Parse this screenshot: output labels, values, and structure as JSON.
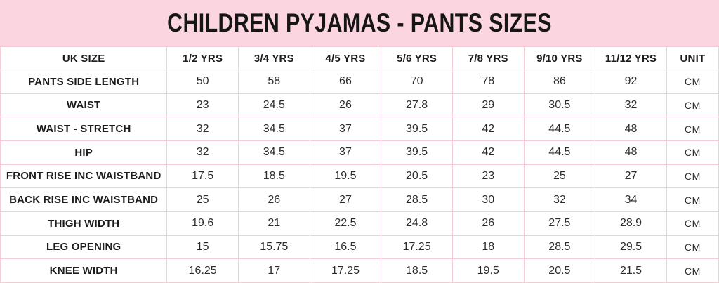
{
  "title": "CHILDREN PYJAMAS - PANTS SIZES",
  "colors": {
    "banner_bg": "#fbd5df",
    "grid_border": "#f7ccd6",
    "text": "#1c1c1c"
  },
  "table": {
    "columns": [
      "UK SIZE",
      "1/2 YRS",
      "3/4 YRS",
      "4/5 YRS",
      "5/6 YRS",
      "7/8 YRS",
      "9/10 YRS",
      "11/12 YRS",
      "UNIT"
    ],
    "rows": [
      {
        "label": "PANTS SIDE LENGTH",
        "values": [
          "50",
          "58",
          "66",
          "70",
          "78",
          "86",
          "92"
        ],
        "unit": "CM"
      },
      {
        "label": "WAIST",
        "values": [
          "23",
          "24.5",
          "26",
          "27.8",
          "29",
          "30.5",
          "32"
        ],
        "unit": "CM"
      },
      {
        "label": "WAIST - STRETCH",
        "values": [
          "32",
          "34.5",
          "37",
          "39.5",
          "42",
          "44.5",
          "48"
        ],
        "unit": "CM"
      },
      {
        "label": "HIP",
        "values": [
          "32",
          "34.5",
          "37",
          "39.5",
          "42",
          "44.5",
          "48"
        ],
        "unit": "CM"
      },
      {
        "label": "FRONT RISE INC WAISTBAND",
        "values": [
          "17.5",
          "18.5",
          "19.5",
          "20.5",
          "23",
          "25",
          "27"
        ],
        "unit": "CM"
      },
      {
        "label": "BACK RISE INC WAISTBAND",
        "values": [
          "25",
          "26",
          "27",
          "28.5",
          "30",
          "32",
          "34"
        ],
        "unit": "CM"
      },
      {
        "label": "THIGH WIDTH",
        "values": [
          "19.6",
          "21",
          "22.5",
          "24.8",
          "26",
          "27.5",
          "28.9"
        ],
        "unit": "CM"
      },
      {
        "label": "LEG OPENING",
        "values": [
          "15",
          "15.75",
          "16.5",
          "17.25",
          "18",
          "28.5",
          "29.5"
        ],
        "unit": "CM"
      },
      {
        "label": "KNEE WIDTH",
        "values": [
          "16.25",
          "17",
          "17.25",
          "18.5",
          "19.5",
          "20.5",
          "21.5"
        ],
        "unit": "CM"
      }
    ]
  }
}
